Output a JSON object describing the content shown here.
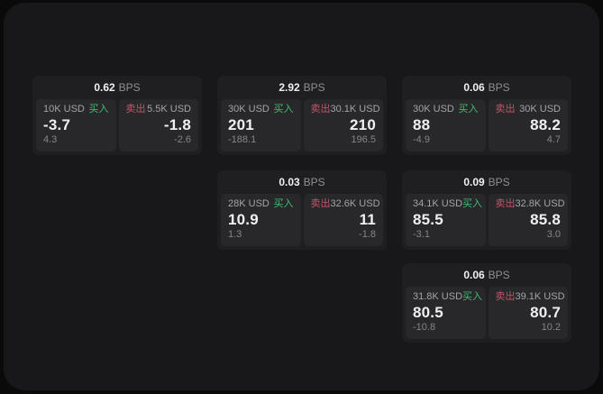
{
  "theme": {
    "page_bg": "#0a0a0b",
    "panel_bg": "#18181a",
    "card_bg": "#1f1f22",
    "tile_bg": "#28282b",
    "text_primary": "#f0f0f0",
    "text_secondary": "#a3a4a6",
    "text_muted": "#858688",
    "text_unit": "#8e8f91",
    "buy_color": "#40bd72",
    "sell_color": "#c05568"
  },
  "labels": {
    "bps_unit": "BPS",
    "buy": "买入",
    "sell": "卖出"
  },
  "cards": [
    {
      "col": 1,
      "row": 1,
      "bps": "0.62",
      "buy": {
        "size": "10K USD",
        "price": "-3.7",
        "delta": "4.3"
      },
      "sell": {
        "size": "5.5K USD",
        "price": "-1.8",
        "delta": "-2.6"
      }
    },
    {
      "col": 2,
      "row": 1,
      "bps": "2.92",
      "buy": {
        "size": "30K USD",
        "price": "201",
        "delta": "-188.1"
      },
      "sell": {
        "size": "30.1K USD",
        "price": "210",
        "delta": "196.5"
      }
    },
    {
      "col": 3,
      "row": 1,
      "bps": "0.06",
      "buy": {
        "size": "30K USD",
        "price": "88",
        "delta": "-4.9"
      },
      "sell": {
        "size": "30K USD",
        "price": "88.2",
        "delta": "4.7"
      }
    },
    {
      "col": 2,
      "row": 2,
      "bps": "0.03",
      "buy": {
        "size": "28K USD",
        "price": "10.9",
        "delta": "1.3"
      },
      "sell": {
        "size": "32.6K USD",
        "price": "11",
        "delta": "-1.8"
      }
    },
    {
      "col": 3,
      "row": 2,
      "bps": "0.09",
      "buy": {
        "size": "34.1K USD",
        "price": "85.5",
        "delta": "-3.1"
      },
      "sell": {
        "size": "32.8K USD",
        "price": "85.8",
        "delta": "3.0"
      }
    },
    {
      "col": 3,
      "row": 3,
      "bps": "0.06",
      "buy": {
        "size": "31.8K USD",
        "price": "80.5",
        "delta": "-10.8"
      },
      "sell": {
        "size": "39.1K USD",
        "price": "80.7",
        "delta": "10.2"
      }
    }
  ]
}
